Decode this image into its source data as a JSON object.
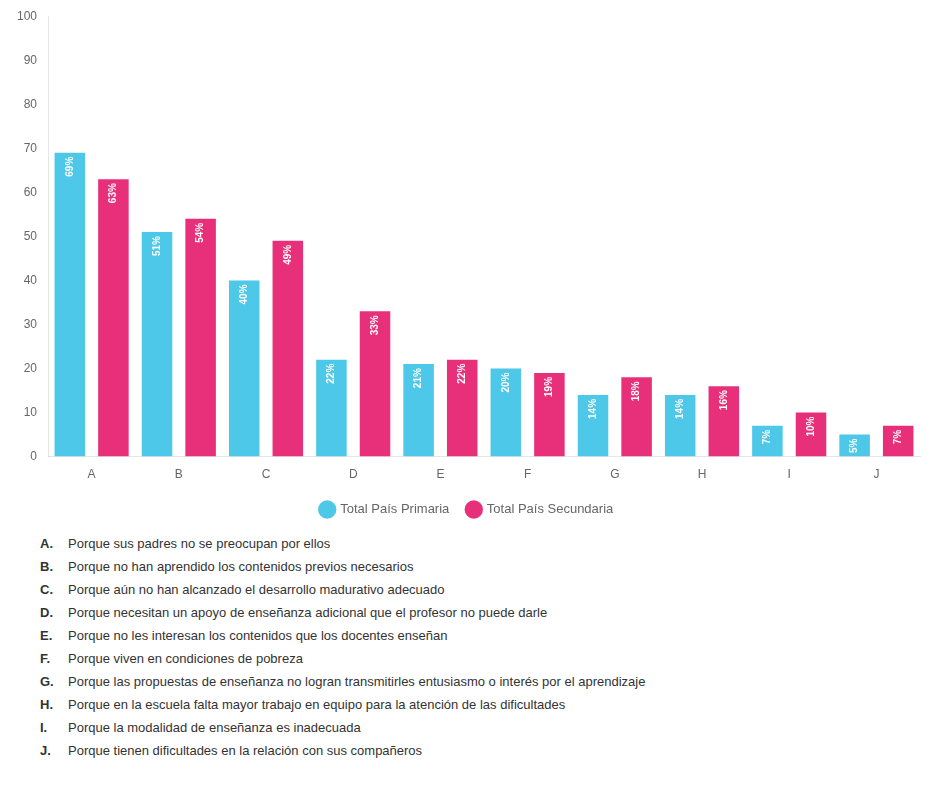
{
  "chart_data": {
    "type": "bar",
    "categories": [
      "A",
      "B",
      "C",
      "D",
      "E",
      "F",
      "G",
      "H",
      "I",
      "J"
    ],
    "series": [
      {
        "name": "Total País Primaria",
        "color": "#4DC8E8",
        "values": [
          69,
          51,
          40,
          22,
          21,
          20,
          14,
          14,
          7,
          5
        ],
        "value_labels": [
          "69%",
          "51%",
          "40%",
          "22%",
          "21%",
          "20%",
          "14%",
          "14%",
          "7%",
          "5%"
        ]
      },
      {
        "name": "Total País Secundaria",
        "color": "#E8307A",
        "values": [
          63,
          54,
          49,
          33,
          22,
          19,
          18,
          16,
          10,
          7
        ],
        "value_labels": [
          "63%",
          "54%",
          "49%",
          "33%",
          "22%",
          "19%",
          "18%",
          "16%",
          "10%",
          "7%"
        ]
      }
    ],
    "ylim": [
      0,
      100
    ],
    "yticks": [
      0,
      10,
      20,
      30,
      40,
      50,
      60,
      70,
      80,
      90,
      100
    ],
    "grid": false,
    "legend": "bottom",
    "data_labels": true,
    "annotations": [
      {
        "key": "A.",
        "text": "Porque sus padres no se preocupan por ellos"
      },
      {
        "key": "B.",
        "text": "Porque no han aprendido los contenidos previos necesarios"
      },
      {
        "key": "C.",
        "text": "Porque aún no han alcanzado el desarrollo madurativo adecuado"
      },
      {
        "key": "D.",
        "text": "Porque necesitan un apoyo de enseñanza adicional que el profesor no puede darle"
      },
      {
        "key": "E.",
        "text": "Porque no les interesan los contenidos que los docentes enseñan"
      },
      {
        "key": "F.",
        "text": "Porque viven en condiciones de pobreza"
      },
      {
        "key": "G.",
        "text": "Porque las propuestas de enseñanza no logran transmitirles entusiasmo o interés por el aprendizaje"
      },
      {
        "key": "H.",
        "text": "Porque en la escuela falta mayor trabajo en equipo para la atención de las dificultades"
      },
      {
        "key": "I.",
        "text": "Porque la modalidad de enseñanza es inadecuada"
      },
      {
        "key": "J.",
        "text": "Porque tienen dificultades en la relación con sus compañeros"
      }
    ]
  }
}
